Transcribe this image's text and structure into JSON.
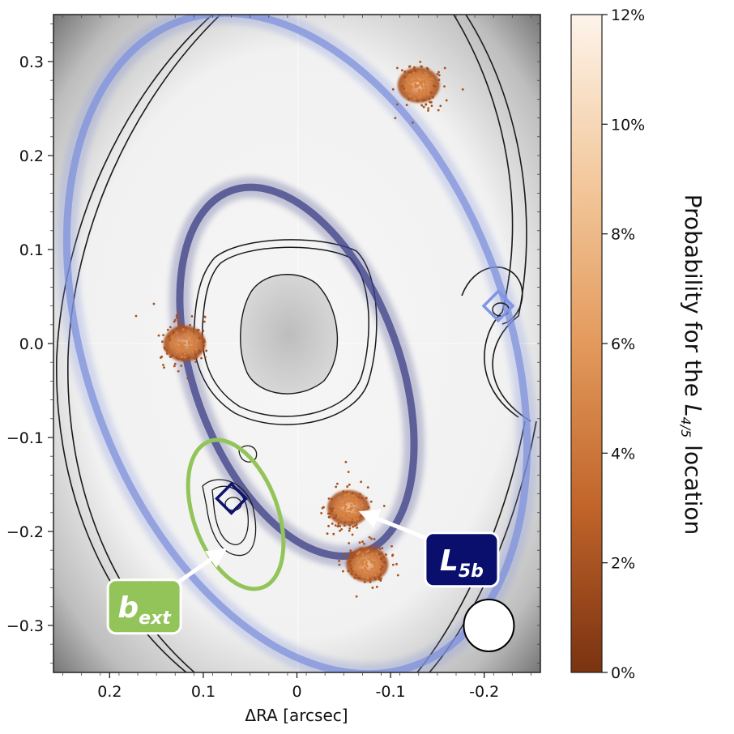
{
  "chart_data": {
    "type": "scatter",
    "xlabel": "ΔRA [arcsec]",
    "ylabel": "",
    "xlim": [
      0.26,
      -0.26
    ],
    "ylim": [
      -0.35,
      0.35
    ],
    "x_ticks": [
      0.2,
      0.1,
      0,
      -0.1,
      -0.2
    ],
    "x_tick_labels": [
      "0.2",
      "0.1",
      "0",
      "-0.1",
      "-0.2"
    ],
    "y_ticks": [
      0.3,
      0.2,
      0.1,
      0.0,
      -0.1,
      -0.2,
      -0.3
    ],
    "y_tick_labels": [
      "0.3",
      "0.2",
      "0.1",
      "0.0",
      "−0.1",
      "−0.2",
      "−0.3"
    ],
    "colorbar": {
      "label_prefix": "Probability for the ",
      "label_symbol": "L",
      "label_subscript": "4/5",
      "label_suffix": " location",
      "ticks": [
        0,
        2,
        4,
        6,
        8,
        10,
        12
      ],
      "tick_labels": [
        "0%",
        "2%",
        "4%",
        "6%",
        "8%",
        "10%",
        "12%"
      ],
      "range": [
        0,
        12
      ],
      "color_low": "#7a3210",
      "color_high": "#fdf4ea"
    },
    "probability_clouds": [
      {
        "x": -0.13,
        "y": 0.275
      },
      {
        "x": 0.12,
        "y": 0.0
      },
      {
        "x": -0.055,
        "y": -0.175
      },
      {
        "x": -0.075,
        "y": -0.235
      }
    ],
    "orbits": [
      {
        "center_x": 0.0,
        "center_y": 0.0,
        "a": 0.225,
        "b": 0.365,
        "angle": -20,
        "color": "#7f92dc"
      },
      {
        "center_x": 0.0,
        "center_y": -0.03,
        "a": 0.11,
        "b": 0.205,
        "angle": -20,
        "color": "#3c3f86"
      }
    ],
    "markers": [
      {
        "x": -0.215,
        "y": 0.04,
        "color": "#7f96e6"
      },
      {
        "x": 0.07,
        "y": -0.165,
        "color": "#0d1270"
      }
    ],
    "annotations": [
      {
        "symbol": "L",
        "subscript": "5b",
        "box_x": -0.176,
        "box_y": -0.23,
        "arrow_to_x": -0.07,
        "arrow_to_y": -0.18,
        "color": "#0a0f6e"
      },
      {
        "symbol": "b",
        "subscript": "ext",
        "box_x": 0.163,
        "box_y": -0.28,
        "arrow_to_x": 0.078,
        "arrow_to_y": -0.22,
        "color": "#93c45a"
      }
    ],
    "beam_ellipse": {
      "x": -0.205,
      "y": -0.3
    }
  }
}
